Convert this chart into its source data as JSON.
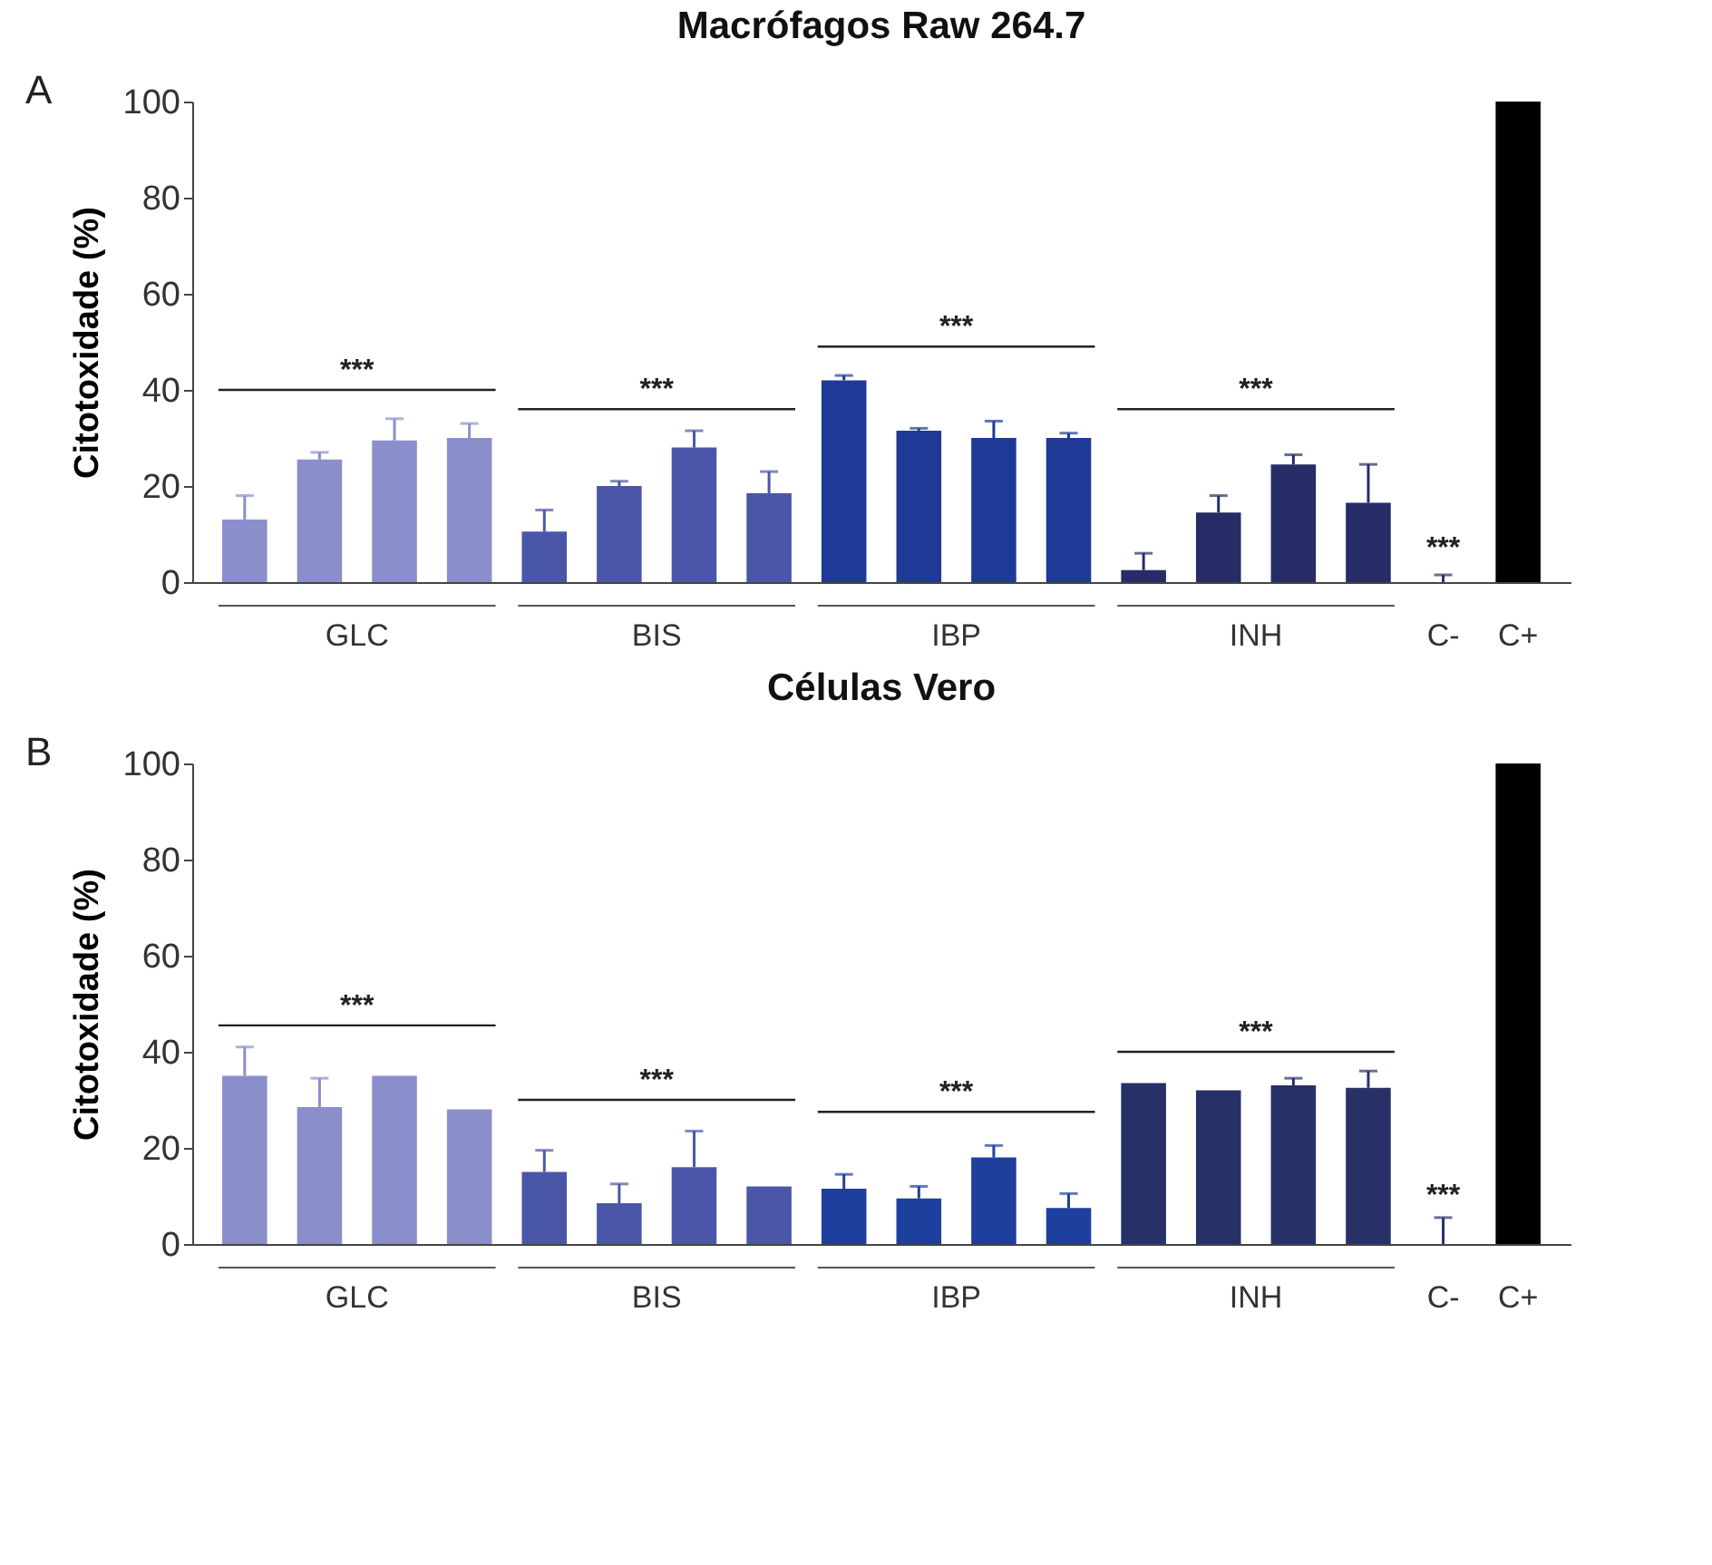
{
  "chart_data": [
    {
      "type": "bar",
      "title": "Macrófagos Raw 264.7",
      "ylabel": "Citotoxidade (%)",
      "categories": [
        null,
        null,
        null,
        null,
        null,
        null,
        null,
        null,
        null,
        null,
        null,
        null,
        null,
        null,
        null,
        null,
        "C-",
        "C+"
      ],
      "values": [
        13,
        25.5,
        29.5,
        30,
        10.5,
        20,
        28,
        18.5,
        42,
        31.5,
        30,
        30,
        2.5,
        14.5,
        24.5,
        16.5,
        0,
        100
      ],
      "errors": [
        [
          13,
          18
        ],
        [
          25.5,
          27
        ],
        [
          29.5,
          34
        ],
        [
          30,
          33
        ],
        [
          10.5,
          15
        ],
        [
          20,
          21
        ],
        [
          28,
          31.5
        ],
        [
          18.5,
          23
        ],
        [
          42,
          43
        ],
        [
          31.5,
          32
        ],
        [
          30,
          33.5
        ],
        [
          30,
          31
        ],
        [
          2.5,
          6
        ],
        [
          14.5,
          18
        ],
        [
          24.5,
          26.5
        ],
        [
          16.5,
          24.5
        ],
        [
          0,
          1.5
        ],
        null
      ],
      "colors": [
        "#8a8fcc",
        "#8a8fcc",
        "#8a8fcc",
        "#8a8fcc",
        "#4a57a8",
        "#4a57a8",
        "#4a57a8",
        "#4a57a8",
        "#1f3a96",
        "#1f3a96",
        "#1f3a96",
        "#1f3a96",
        "#262d66",
        "#262d66",
        "#262d66",
        "#262d66",
        "#262d66",
        "#000000"
      ],
      "ylim": [
        0,
        100
      ],
      "yticks": [
        0,
        20,
        40,
        60,
        80,
        100
      ],
      "annotations": [
        "A",
        "GLC",
        "BIS",
        "IBP",
        "INH",
        "***",
        "***",
        "***",
        "***",
        "***"
      ]
    },
    {
      "type": "bar",
      "title": "Células Vero",
      "ylabel": "Citotoxidade (%)",
      "categories": [
        null,
        null,
        null,
        null,
        null,
        null,
        null,
        null,
        null,
        null,
        null,
        null,
        null,
        null,
        null,
        null,
        "C-",
        "C+"
      ],
      "values": [
        35,
        28.5,
        35,
        28,
        15,
        8.5,
        16,
        12,
        11.5,
        9.5,
        18,
        7.5,
        33.5,
        32,
        33,
        32.5,
        0,
        100
      ],
      "errors": [
        [
          35,
          41
        ],
        [
          28.5,
          34.5
        ],
        null,
        null,
        [
          15,
          19.5
        ],
        [
          8.5,
          12.5
        ],
        [
          16,
          23.5
        ],
        null,
        [
          11.5,
          14.5
        ],
        [
          9.5,
          12
        ],
        [
          18,
          20.5
        ],
        [
          7.5,
          10.5
        ],
        null,
        null,
        [
          33,
          34.5
        ],
        [
          32.5,
          36
        ],
        [
          0,
          5.5
        ],
        null
      ],
      "colors": [
        "#8a8fcc",
        "#8a8fcc",
        "#8a8fcc",
        "#8a8fcc",
        "#4a57a8",
        "#4a57a8",
        "#4a57a8",
        "#4a57a8",
        "#1f3f9e",
        "#1f3f9e",
        "#1f3f9e",
        "#1f3f9e",
        "#283068",
        "#283068",
        "#283068",
        "#283068",
        "#283068",
        "#000000"
      ],
      "ylim": [
        0,
        100
      ],
      "yticks": [
        0,
        20,
        40,
        60,
        80,
        100
      ],
      "annotations": [
        "B",
        "GLC",
        "BIS",
        "IBP",
        "INH",
        "***",
        "***",
        "***",
        "***",
        "***"
      ]
    }
  ]
}
